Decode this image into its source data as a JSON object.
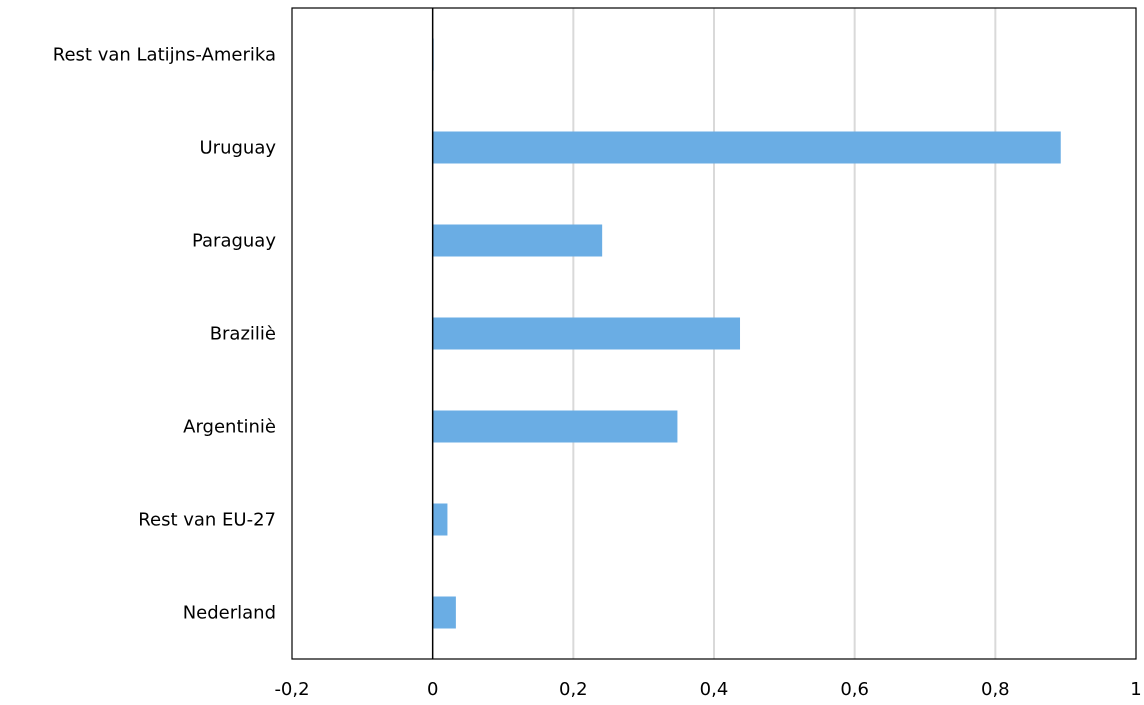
{
  "chart_data": {
    "type": "bar",
    "orientation": "horizontal",
    "categories": [
      "Rest van Latijns-Amerika",
      "Uruguay",
      "Paraguay",
      "Braziliè",
      "Argentiniè",
      "Rest van EU-27",
      "Nederland"
    ],
    "values": [
      0.001,
      0.893,
      0.241,
      0.437,
      0.348,
      0.021,
      0.033
    ],
    "xlim": [
      -0.2,
      1
    ],
    "xticks": [
      -0.2,
      0,
      0.2,
      0.4,
      0.6,
      0.8,
      1
    ],
    "xtick_labels": [
      "-0,2",
      "0",
      "0,2",
      "0,4",
      "0,6",
      "0,8",
      "1"
    ],
    "title": "",
    "xlabel": "",
    "ylabel": "",
    "grid": "vertical",
    "legend": "none",
    "bar_color": "#6aade4",
    "grid_color": "#d9d9d9",
    "axis_color": "#000000"
  }
}
